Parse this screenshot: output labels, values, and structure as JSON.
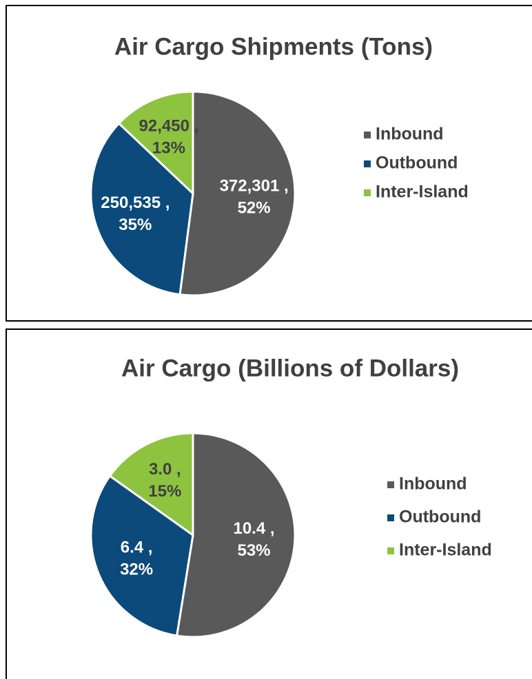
{
  "chart_data": [
    {
      "type": "pie",
      "title": "Air Cargo Shipments (Tons)",
      "categories": [
        "Inbound",
        "Outbound",
        "Inter-Island"
      ],
      "values": [
        372301,
        250535,
        92450
      ],
      "value_labels": [
        [
          "372,301 ,",
          "52%"
        ],
        [
          "250,535 ,",
          "35%"
        ],
        [
          "92,450 ,",
          "13%"
        ]
      ],
      "colors": [
        "#595959",
        "#0b4a7a",
        "#8dc33f"
      ],
      "label_colors": [
        "#ffffff",
        "#ffffff",
        "#404040"
      ]
    },
    {
      "type": "pie",
      "title": "Air Cargo (Billions of Dollars)",
      "categories": [
        "Inbound",
        "Outbound",
        "Inter-Island"
      ],
      "values": [
        10.4,
        6.4,
        3.0
      ],
      "value_labels": [
        [
          "10.4 ,",
          "53%"
        ],
        [
          "6.4 ,",
          "32%"
        ],
        [
          "3.0 ,",
          "15%"
        ]
      ],
      "colors": [
        "#595959",
        "#0b4a7a",
        "#8dc33f"
      ],
      "label_colors": [
        "#ffffff",
        "#ffffff",
        "#404040"
      ]
    }
  ]
}
